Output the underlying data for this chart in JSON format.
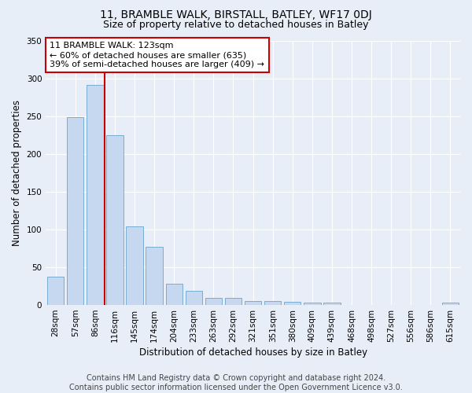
{
  "title1": "11, BRAMBLE WALK, BIRSTALL, BATLEY, WF17 0DJ",
  "title2": "Size of property relative to detached houses in Batley",
  "xlabel": "Distribution of detached houses by size in Batley",
  "ylabel": "Number of detached properties",
  "categories": [
    "28sqm",
    "57sqm",
    "86sqm",
    "116sqm",
    "145sqm",
    "174sqm",
    "204sqm",
    "233sqm",
    "263sqm",
    "292sqm",
    "321sqm",
    "351sqm",
    "380sqm",
    "409sqm",
    "439sqm",
    "468sqm",
    "498sqm",
    "527sqm",
    "556sqm",
    "586sqm",
    "615sqm"
  ],
  "values": [
    38,
    249,
    291,
    225,
    104,
    77,
    28,
    19,
    9,
    9,
    5,
    5,
    4,
    3,
    3,
    0,
    0,
    0,
    0,
    0,
    3
  ],
  "bar_color": "#c5d8f0",
  "bar_edge_color": "#7aadd4",
  "annotation_text": "11 BRAMBLE WALK: 123sqm\n← 60% of detached houses are smaller (635)\n39% of semi-detached houses are larger (409) →",
  "annotation_box_color": "#ffffff",
  "annotation_box_edge": "#cc0000",
  "red_line_index": 2.5,
  "ylim": [
    0,
    350
  ],
  "yticks": [
    0,
    50,
    100,
    150,
    200,
    250,
    300,
    350
  ],
  "footer": "Contains HM Land Registry data © Crown copyright and database right 2024.\nContains public sector information licensed under the Open Government Licence v3.0.",
  "bg_color": "#e8eef8",
  "plot_bg_color": "#e8eef8",
  "grid_color": "#ffffff",
  "title1_fontsize": 10,
  "title2_fontsize": 9,
  "axis_label_fontsize": 8.5,
  "tick_fontsize": 7.5,
  "annotation_fontsize": 8,
  "footer_fontsize": 7
}
